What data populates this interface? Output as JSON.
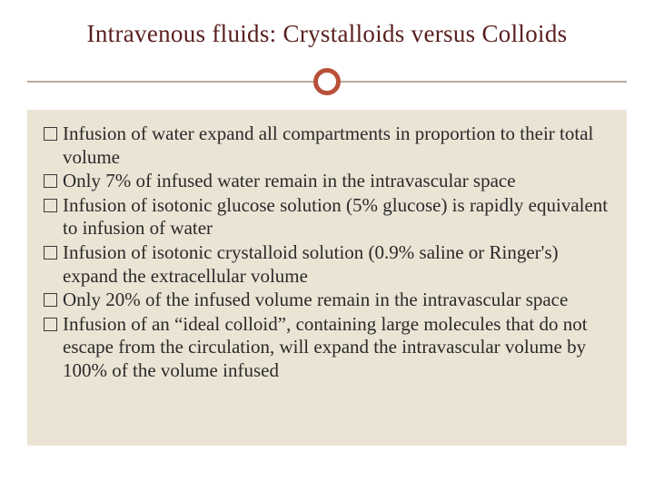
{
  "slide": {
    "title": "Intravenous fluids:  Crystalloids versus Colloids",
    "background_color": "#ffffff",
    "content_background": "#ebe4d5",
    "title_color": "#5a1e1e",
    "title_fontsize": 27,
    "divider": {
      "line_color": "#b8a99a",
      "circle_border_color": "#b9503a",
      "circle_border_width": 5,
      "circle_diameter": 30
    },
    "body_fontsize": 21,
    "body_color": "#2a2a2a",
    "bullet_marker": {
      "type": "hollow-square",
      "size": 15,
      "border_color": "#3a3a3a"
    },
    "bullets": [
      "Infusion of water expand all compartments in proportion to their total volume",
      "Only 7% of infused water remain in the intravascular space",
      "Infusion of isotonic glucose solution (5% glucose) is rapidly equivalent to infusion of water",
      "Infusion of isotonic crystalloid solution (0.9% saline or Ringer's) expand the extracellular volume",
      "Only 20% of the infused volume remain in the intravascular space",
      "Infusion of an “ideal colloid”, containing large molecules that do not escape from the circulation, will expand the intravascular volume by 100% of the volume infused"
    ]
  }
}
